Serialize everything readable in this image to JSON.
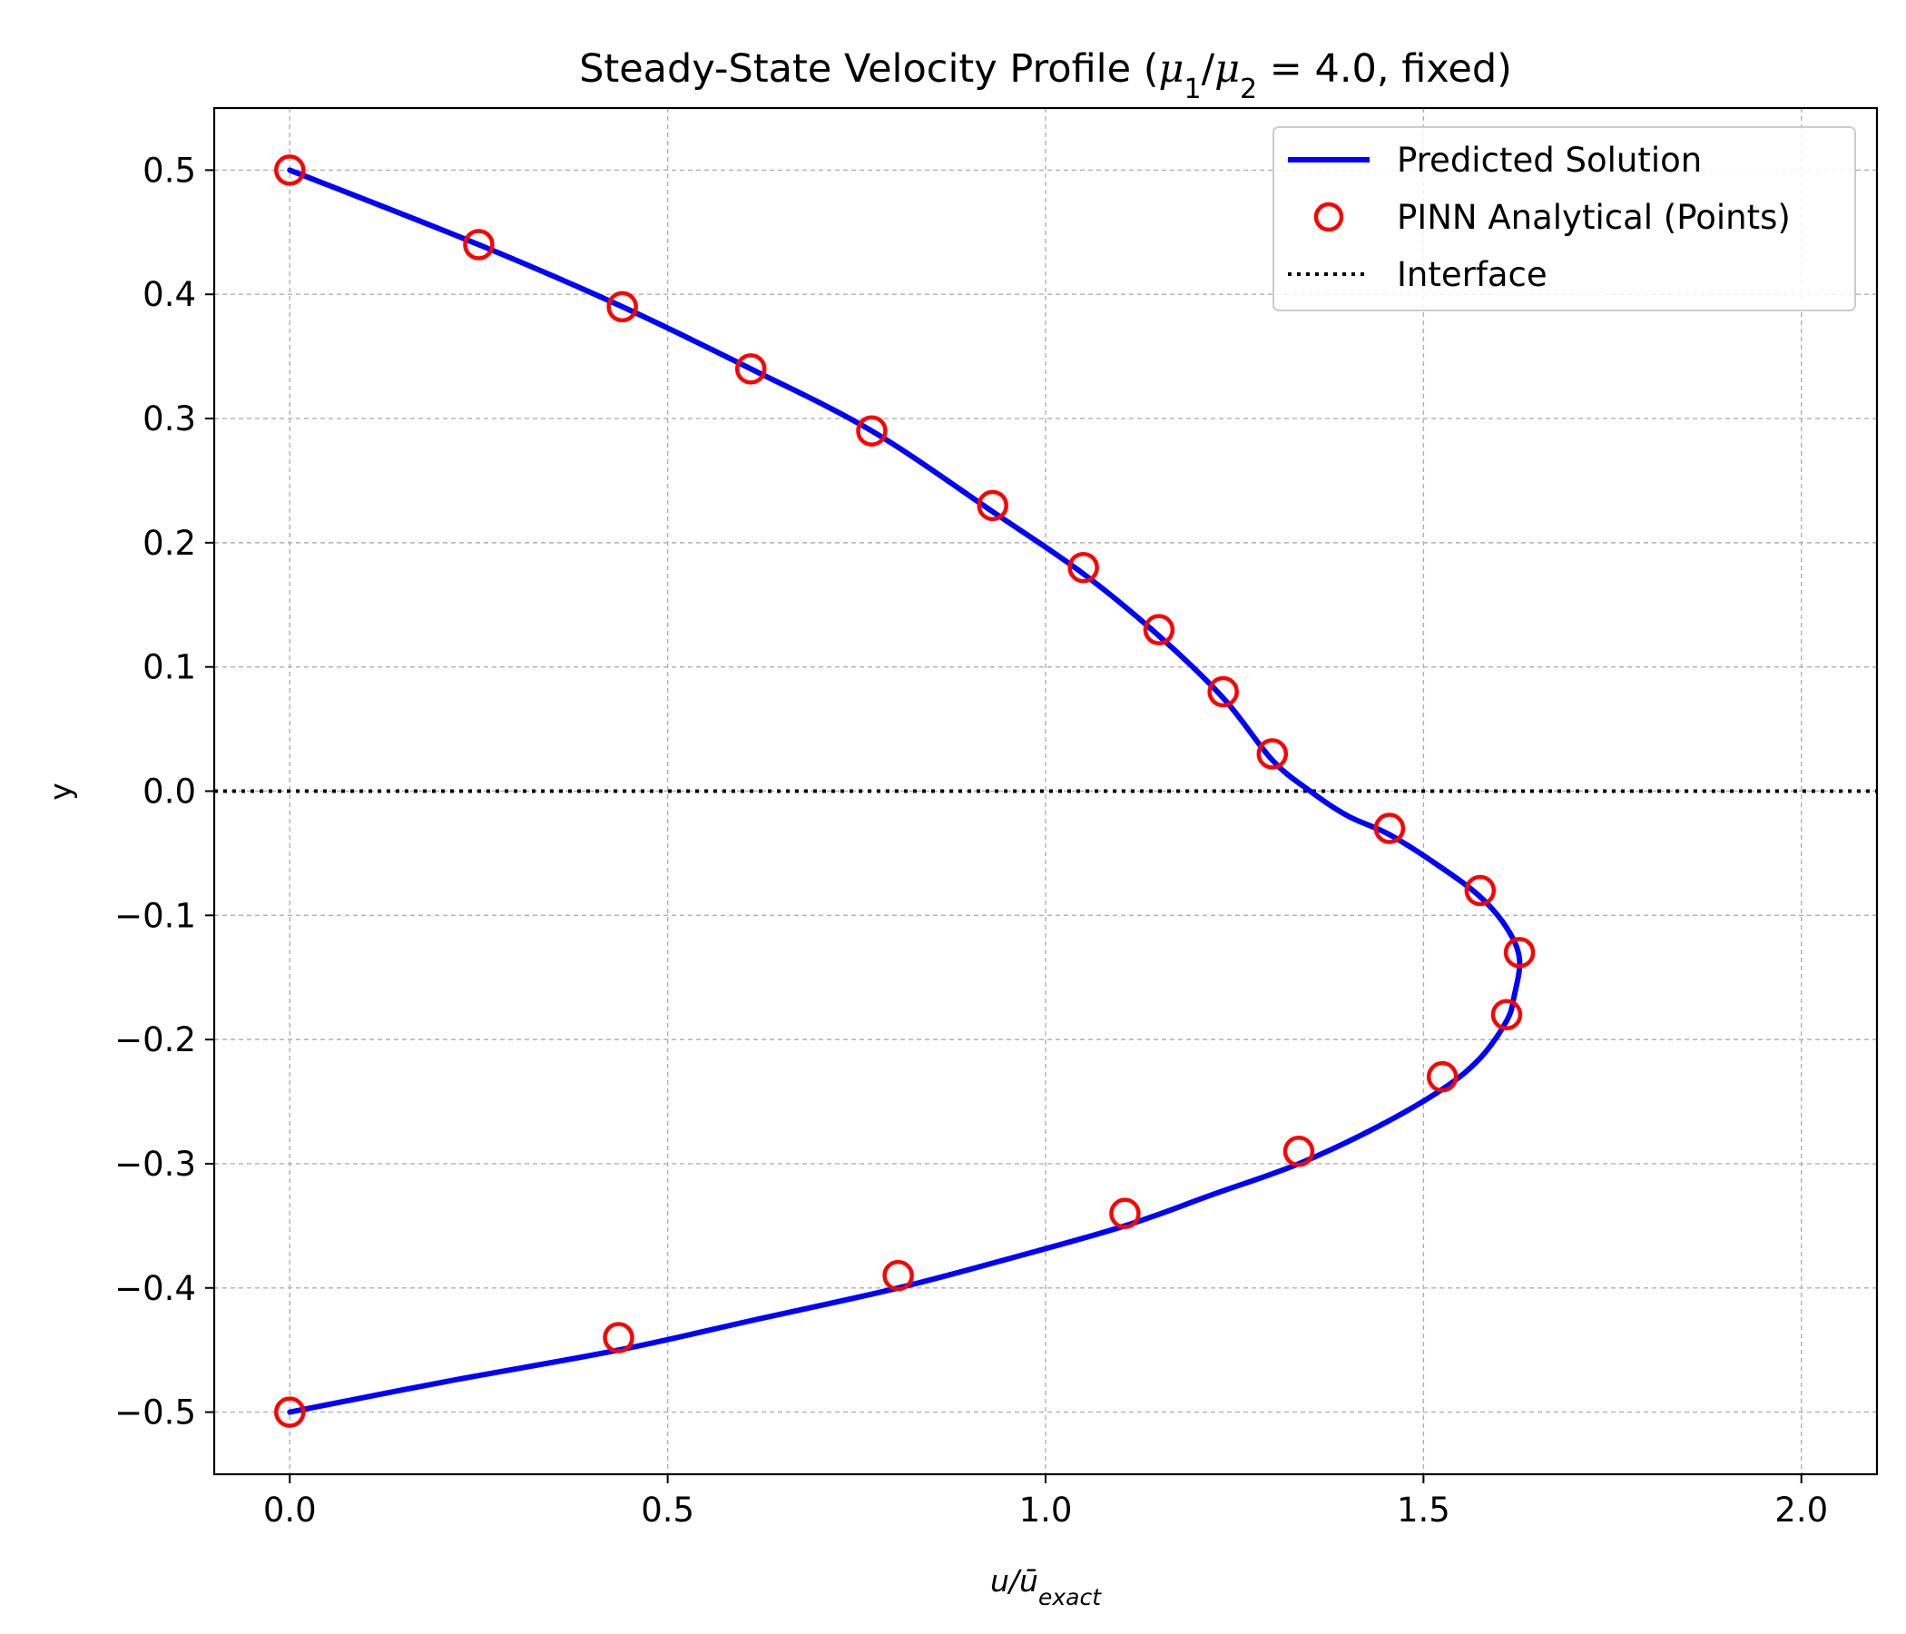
{
  "chart_data": {
    "type": "line",
    "title": "Steady-State Velocity Profile (μ₁/μ₂ = 4.0, fixed)",
    "xlabel": "u/ū_exact",
    "xlabel_parts": {
      "base": "u/ū",
      "sub": "exact"
    },
    "ylabel": "y",
    "xlim": [
      -0.1,
      2.1
    ],
    "ylim": [
      -0.55,
      0.55
    ],
    "x_ticks": [
      0.0,
      0.5,
      1.0,
      1.5,
      2.0
    ],
    "x_tick_labels": [
      "0.0",
      "0.5",
      "1.0",
      "1.5",
      "2.0"
    ],
    "y_ticks": [
      0.5,
      0.4,
      0.3,
      0.2,
      0.1,
      0.0,
      -0.1,
      -0.2,
      -0.3,
      -0.4,
      -0.5
    ],
    "y_tick_labels": [
      "0.5",
      "0.4",
      "0.3",
      "0.2",
      "0.1",
      "0.0",
      "−0.1",
      "−0.2",
      "−0.3",
      "−0.4",
      "−0.5"
    ],
    "grid": true,
    "legend_position": "top-right",
    "series": [
      {
        "name": "Predicted Solution",
        "style": "line",
        "color": "#0000ff",
        "points": [
          [
            0.0,
            0.5
          ],
          [
            0.25,
            0.44
          ],
          [
            0.44,
            0.39
          ],
          [
            0.61,
            0.34
          ],
          [
            0.77,
            0.29
          ],
          [
            0.93,
            0.225
          ],
          [
            1.05,
            0.175
          ],
          [
            1.15,
            0.125
          ],
          [
            1.235,
            0.075
          ],
          [
            1.3,
            0.025
          ],
          [
            1.35,
            0.0
          ],
          [
            1.4,
            -0.02
          ],
          [
            1.455,
            -0.035
          ],
          [
            1.52,
            -0.06
          ],
          [
            1.575,
            -0.085
          ],
          [
            1.61,
            -0.11
          ],
          [
            1.627,
            -0.135
          ],
          [
            1.62,
            -0.165
          ],
          [
            1.61,
            -0.185
          ],
          [
            1.575,
            -0.215
          ],
          [
            1.525,
            -0.24
          ],
          [
            1.44,
            -0.27
          ],
          [
            1.335,
            -0.3
          ],
          [
            1.22,
            -0.325
          ],
          [
            1.105,
            -0.35
          ],
          [
            0.96,
            -0.375
          ],
          [
            0.805,
            -0.4
          ],
          [
            0.62,
            -0.425
          ],
          [
            0.435,
            -0.45
          ],
          [
            0.21,
            -0.475
          ],
          [
            0.0,
            -0.5
          ]
        ]
      },
      {
        "name": "PINN Analytical (Points)",
        "style": "markers",
        "color": "#ff0000",
        "points": [
          [
            0.0,
            0.5
          ],
          [
            0.25,
            0.44
          ],
          [
            0.44,
            0.39
          ],
          [
            0.61,
            0.34
          ],
          [
            0.77,
            0.29
          ],
          [
            0.93,
            0.23
          ],
          [
            1.05,
            0.18
          ],
          [
            1.15,
            0.13
          ],
          [
            1.235,
            0.08
          ],
          [
            1.3,
            0.03
          ],
          [
            1.455,
            -0.03
          ],
          [
            1.575,
            -0.08
          ],
          [
            1.627,
            -0.13
          ],
          [
            1.61,
            -0.18
          ],
          [
            1.525,
            -0.23
          ],
          [
            1.335,
            -0.29
          ],
          [
            1.105,
            -0.34
          ],
          [
            0.805,
            -0.39
          ],
          [
            0.435,
            -0.44
          ],
          [
            0.0,
            -0.5
          ]
        ]
      },
      {
        "name": "Interface",
        "style": "dotted-hline",
        "color": "#000000",
        "y": 0.0
      }
    ]
  }
}
